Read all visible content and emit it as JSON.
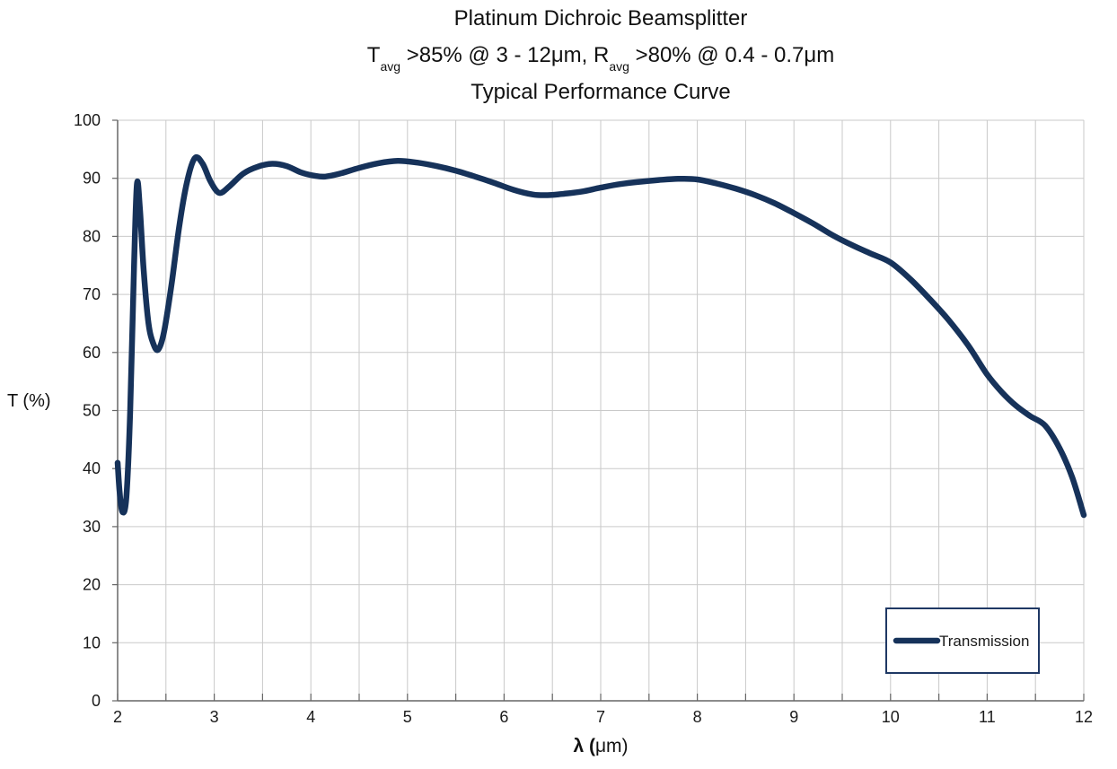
{
  "title": {
    "line1": "Platinum Dichroic Beamsplitter",
    "line2": {
      "seg1": "T",
      "sub1": "avg",
      "seg2": " >85% @ 3 - 12μm, R",
      "sub2": "avg",
      "seg3": " >80% @ 0.4 - 0.7μm"
    },
    "line3": "Typical Performance Curve"
  },
  "axes": {
    "x_label_bold": "λ (",
    "x_label_rest": "μm)",
    "y_label": "T (%)",
    "x_ticks": [
      2,
      3,
      4,
      5,
      6,
      7,
      8,
      9,
      10,
      11,
      12
    ],
    "y_ticks": [
      0,
      10,
      20,
      30,
      40,
      50,
      60,
      70,
      80,
      90,
      100
    ]
  },
  "legend": {
    "label": "Transmission"
  },
  "colors": {
    "curve": "#16325a",
    "grid": "#c9c9c9",
    "axis": "#666666",
    "legend_border": "#1f3864",
    "text": "#1a1a1a"
  },
  "chart_data": {
    "type": "line",
    "title": "Platinum Dichroic Beamsplitter",
    "subtitle": "Tavg >85% @ 3 - 12μm, Ravg >80% @ 0.4 - 0.7μm",
    "subtitle2": "Typical Performance Curve",
    "xlabel": "λ (μm)",
    "ylabel": "T (%)",
    "xlim": [
      2,
      12
    ],
    "ylim": [
      0,
      100
    ],
    "x_grid_step": 0.5,
    "y_grid_step": 10,
    "grid": true,
    "legend_position": "inside-bottom-right",
    "series": [
      {
        "name": "Transmission",
        "color": "#16325a",
        "points": [
          [
            2.0,
            41
          ],
          [
            2.02,
            36
          ],
          [
            2.05,
            32.5
          ],
          [
            2.09,
            35
          ],
          [
            2.13,
            50
          ],
          [
            2.17,
            75
          ],
          [
            2.2,
            89
          ],
          [
            2.23,
            85
          ],
          [
            2.27,
            74
          ],
          [
            2.32,
            65
          ],
          [
            2.37,
            61.5
          ],
          [
            2.42,
            60.5
          ],
          [
            2.48,
            63.5
          ],
          [
            2.56,
            72
          ],
          [
            2.64,
            82
          ],
          [
            2.72,
            89.5
          ],
          [
            2.8,
            93.5
          ],
          [
            2.88,
            92.5
          ],
          [
            2.96,
            89.5
          ],
          [
            3.05,
            87.5
          ],
          [
            3.15,
            88.5
          ],
          [
            3.3,
            90.8
          ],
          [
            3.45,
            92
          ],
          [
            3.6,
            92.5
          ],
          [
            3.75,
            92.1
          ],
          [
            3.9,
            91
          ],
          [
            4.05,
            90.4
          ],
          [
            4.15,
            90.3
          ],
          [
            4.3,
            90.8
          ],
          [
            4.5,
            91.8
          ],
          [
            4.7,
            92.6
          ],
          [
            4.9,
            93
          ],
          [
            5.1,
            92.7
          ],
          [
            5.3,
            92.1
          ],
          [
            5.5,
            91.3
          ],
          [
            5.7,
            90.3
          ],
          [
            5.9,
            89.2
          ],
          [
            6.1,
            88
          ],
          [
            6.3,
            87.2
          ],
          [
            6.45,
            87.1
          ],
          [
            6.6,
            87.3
          ],
          [
            6.8,
            87.7
          ],
          [
            7.0,
            88.4
          ],
          [
            7.2,
            89
          ],
          [
            7.4,
            89.4
          ],
          [
            7.6,
            89.7
          ],
          [
            7.8,
            89.9
          ],
          [
            8.0,
            89.8
          ],
          [
            8.2,
            89.1
          ],
          [
            8.4,
            88.2
          ],
          [
            8.6,
            87.1
          ],
          [
            8.8,
            85.7
          ],
          [
            9.0,
            84
          ],
          [
            9.2,
            82.2
          ],
          [
            9.4,
            80.2
          ],
          [
            9.6,
            78.5
          ],
          [
            9.8,
            77
          ],
          [
            10.0,
            75.5
          ],
          [
            10.2,
            72.7
          ],
          [
            10.4,
            69.3
          ],
          [
            10.6,
            65.6
          ],
          [
            10.8,
            61.3
          ],
          [
            11.0,
            56.2
          ],
          [
            11.15,
            53.2
          ],
          [
            11.3,
            50.8
          ],
          [
            11.45,
            49
          ],
          [
            11.6,
            47.4
          ],
          [
            11.75,
            43.5
          ],
          [
            11.88,
            38.5
          ],
          [
            12.0,
            32
          ]
        ]
      }
    ]
  }
}
